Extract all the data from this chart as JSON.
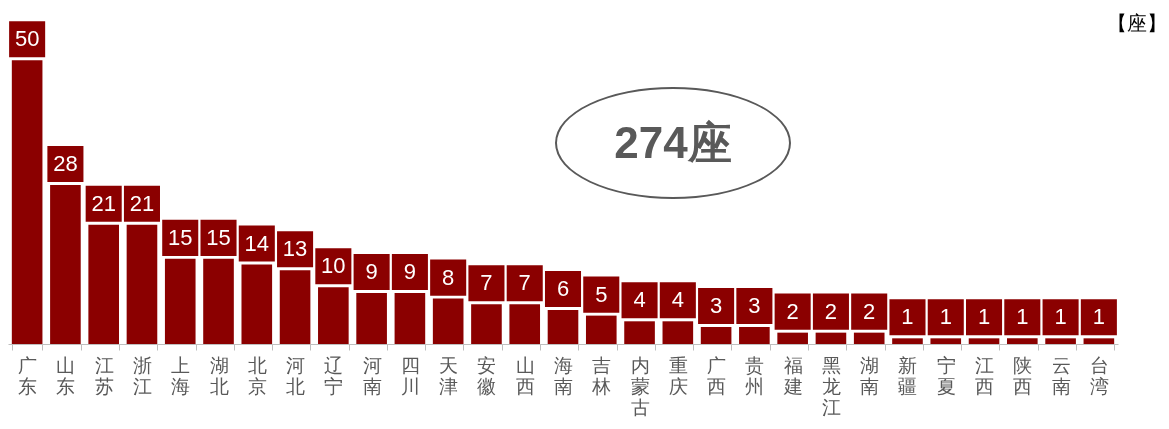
{
  "chart_data": {
    "type": "bar",
    "categories": [
      "广东",
      "山东",
      "江苏",
      "浙江",
      "上海",
      "湖北",
      "北京",
      "河北",
      "辽宁",
      "河南",
      "四川",
      "天津",
      "安徽",
      "山西",
      "海南",
      "吉林",
      "内蒙古",
      "重庆",
      "广西",
      "贵州",
      "福建",
      "黑龙江",
      "湖南",
      "新疆",
      "宁夏",
      "江西",
      "陕西",
      "云南",
      "台湾"
    ],
    "values": [
      50,
      28,
      21,
      21,
      15,
      15,
      14,
      13,
      10,
      9,
      9,
      8,
      7,
      7,
      6,
      5,
      4,
      4,
      3,
      3,
      2,
      2,
      2,
      1,
      1,
      1,
      1,
      1,
      1
    ],
    "color": "#8b0000",
    "data_labels": true,
    "grid": false,
    "annotations": [
      "【座】",
      "274座"
    ]
  }
}
